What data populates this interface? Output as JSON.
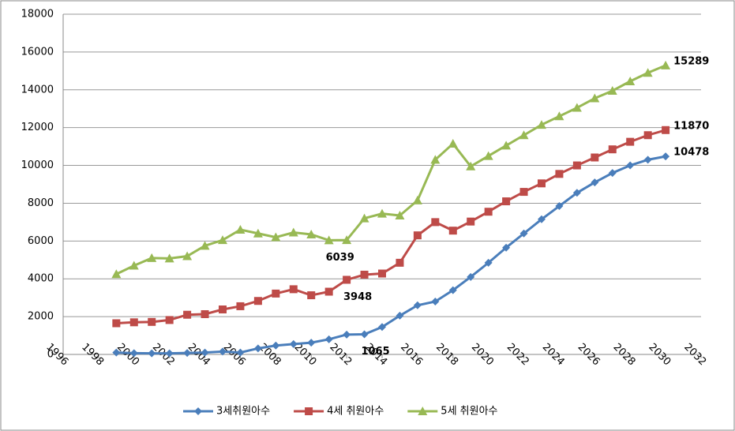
{
  "chart_data": {
    "type": "line",
    "x": [
      1999,
      2000,
      2001,
      2002,
      2003,
      2004,
      2005,
      2006,
      2007,
      2008,
      2009,
      2010,
      2011,
      2012,
      2013,
      2014,
      2015,
      2016,
      2017,
      2018,
      2019,
      2020,
      2021,
      2022,
      2023,
      2024,
      2025,
      2026,
      2027,
      2028,
      2029,
      2030
    ],
    "series": [
      {
        "name": "3세취원아수",
        "color": "#4a7ebb",
        "marker": "diamond",
        "values": [
          100,
          70,
          60,
          60,
          80,
          100,
          150,
          100,
          320,
          470,
          550,
          620,
          800,
          1050,
          1065,
          1450,
          2050,
          2600,
          2800,
          3400,
          4100,
          4850,
          5650,
          6400,
          7150,
          7850,
          8550,
          9100,
          9600,
          10000,
          10300,
          10478
        ],
        "value_labels": [
          null,
          null,
          null,
          null,
          null,
          null,
          null,
          null,
          null,
          null,
          null,
          null,
          null,
          null,
          "1065",
          null,
          null,
          null,
          null,
          null,
          null,
          null,
          null,
          null,
          null,
          null,
          null,
          null,
          null,
          null,
          null,
          "10478"
        ]
      },
      {
        "name": "4세 취원아수",
        "color": "#be4b48",
        "marker": "square",
        "values": [
          1650,
          1700,
          1720,
          1820,
          2100,
          2130,
          2380,
          2550,
          2830,
          3220,
          3450,
          3130,
          3320,
          3948,
          4220,
          4280,
          4850,
          6300,
          7000,
          6550,
          7030,
          7550,
          8100,
          8600,
          9050,
          9550,
          10000,
          10420,
          10850,
          11250,
          11600,
          11870
        ],
        "value_labels": [
          null,
          null,
          null,
          null,
          null,
          null,
          null,
          null,
          null,
          null,
          null,
          null,
          null,
          "3948",
          null,
          null,
          null,
          null,
          null,
          null,
          null,
          null,
          null,
          null,
          null,
          null,
          null,
          null,
          null,
          null,
          null,
          "11870"
        ]
      },
      {
        "name": "5세 취원아수",
        "color": "#98b954",
        "marker": "triangle",
        "values": [
          4250,
          4700,
          5100,
          5080,
          5200,
          5750,
          6050,
          6600,
          6400,
          6200,
          6450,
          6350,
          6039,
          6050,
          7200,
          7450,
          7350,
          8150,
          10300,
          11150,
          9950,
          10500,
          11050,
          11600,
          12150,
          12600,
          13050,
          13550,
          13950,
          14450,
          14900,
          15289
        ],
        "value_labels": [
          null,
          null,
          null,
          null,
          null,
          null,
          null,
          null,
          null,
          null,
          null,
          null,
          "6039",
          null,
          null,
          null,
          null,
          null,
          null,
          null,
          null,
          null,
          null,
          null,
          null,
          null,
          null,
          null,
          null,
          null,
          null,
          "15289"
        ]
      }
    ],
    "xlim": [
      1996,
      2032
    ],
    "xticks": [
      1996,
      1998,
      2000,
      2002,
      2004,
      2006,
      2008,
      2010,
      2012,
      2014,
      2016,
      2018,
      2020,
      2022,
      2024,
      2026,
      2028,
      2030,
      2032
    ],
    "ylim": [
      0,
      18000
    ],
    "yticks": [
      0,
      2000,
      4000,
      6000,
      8000,
      10000,
      12000,
      14000,
      16000,
      18000
    ],
    "grid": true,
    "legend": "bottom"
  }
}
